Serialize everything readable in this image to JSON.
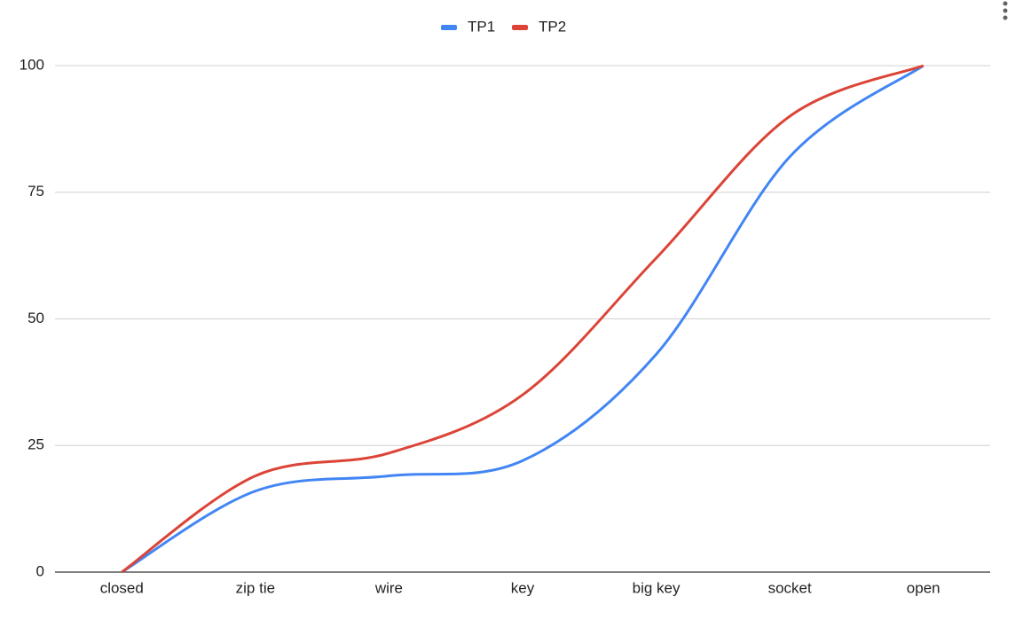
{
  "chart_data": {
    "type": "line",
    "smooth": true,
    "categories": [
      "closed",
      "zip tie",
      "wire",
      "key",
      "big key",
      "socket",
      "open"
    ],
    "series": [
      {
        "name": "TP1",
        "color": "#4285f4",
        "values": [
          0,
          16,
          19,
          22,
          43,
          82,
          100
        ]
      },
      {
        "name": "TP2",
        "color": "#db4437",
        "values": [
          0,
          19,
          23.5,
          35,
          62,
          90,
          100
        ]
      }
    ],
    "ylim": [
      0,
      100
    ],
    "yticks": [
      0,
      25,
      50,
      75,
      100
    ],
    "grid": true,
    "legend": "top"
  }
}
